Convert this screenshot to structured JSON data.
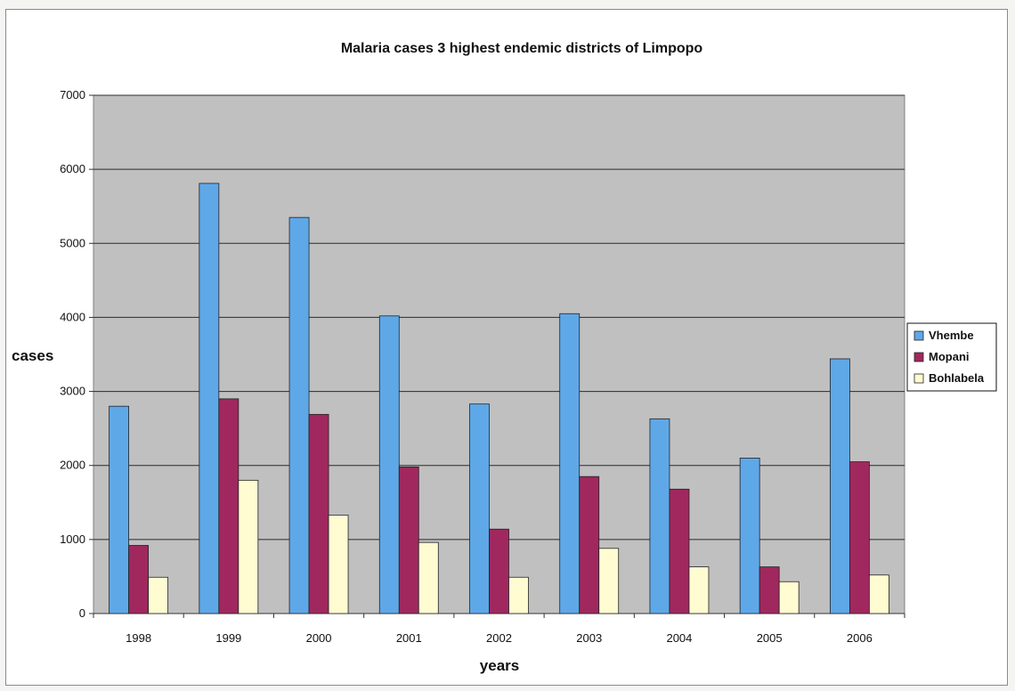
{
  "chart_data": {
    "type": "bar",
    "title": "Malaria cases 3 highest endemic districts of Limpopo",
    "xlabel": "years",
    "ylabel": "cases",
    "categories": [
      "1998",
      "1999",
      "2000",
      "2001",
      "2002",
      "2003",
      "2004",
      "2005",
      "2006"
    ],
    "series": [
      {
        "name": "Vhembe",
        "color": "#5fa8e8",
        "values": [
          2800,
          5810,
          5350,
          4020,
          2830,
          4050,
          2630,
          2100,
          3440
        ]
      },
      {
        "name": "Mopani",
        "color": "#a0285e",
        "values": [
          920,
          2900,
          2690,
          1980,
          1140,
          1850,
          1680,
          630,
          2050
        ]
      },
      {
        "name": "Bohlabela",
        "color": "#fffcd2",
        "values": [
          490,
          1800,
          1330,
          960,
          490,
          880,
          630,
          430,
          520
        ]
      }
    ],
    "ylim": [
      0,
      7000
    ],
    "yticks": [
      0,
      1000,
      2000,
      3000,
      4000,
      5000,
      6000,
      7000
    ],
    "grid": true,
    "legend_position": "right",
    "plot_background": "#c0c0c0"
  }
}
